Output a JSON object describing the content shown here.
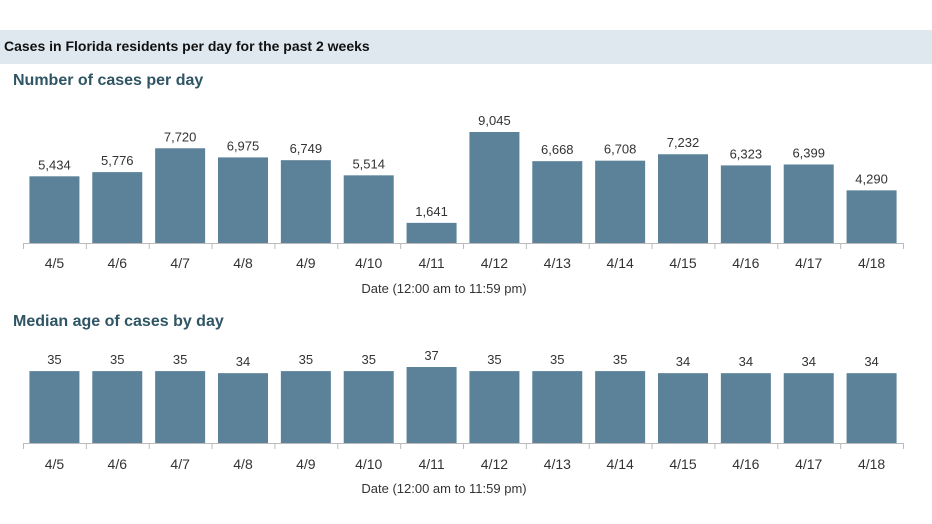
{
  "banner": {
    "title": "Cases in Florida residents per day for the past 2 weeks"
  },
  "colors": {
    "bar": "#5b8299",
    "axis": "#bbbbbb",
    "banner_bg": "#dfe8ef",
    "title": "#2f5564"
  },
  "chart_data": [
    {
      "type": "bar",
      "title": "Number of cases per day",
      "xlabel": "Date (12:00 am to 11:59 pm)",
      "ylabel": "",
      "categories": [
        "4/5",
        "4/6",
        "4/7",
        "4/8",
        "4/9",
        "4/10",
        "4/11",
        "4/12",
        "4/13",
        "4/14",
        "4/15",
        "4/16",
        "4/17",
        "4/18"
      ],
      "values": [
        5434,
        5776,
        7720,
        6975,
        6749,
        5514,
        1641,
        9045,
        6668,
        6708,
        7232,
        6323,
        6399,
        4290
      ],
      "value_labels": [
        "5,434",
        "5,776",
        "7,720",
        "6,975",
        "6,749",
        "5,514",
        "1,641",
        "9,045",
        "6,668",
        "6,708",
        "7,232",
        "6,323",
        "6,399",
        "4,290"
      ],
      "ylim": [
        0,
        9045
      ],
      "grid": false
    },
    {
      "type": "bar",
      "title": "Median age of cases by day",
      "xlabel": "Date (12:00 am to 11:59 pm)",
      "ylabel": "",
      "categories": [
        "4/5",
        "4/6",
        "4/7",
        "4/8",
        "4/9",
        "4/10",
        "4/11",
        "4/12",
        "4/13",
        "4/14",
        "4/15",
        "4/16",
        "4/17",
        "4/18"
      ],
      "values": [
        35,
        35,
        35,
        34,
        35,
        35,
        37,
        35,
        35,
        35,
        34,
        34,
        34,
        34
      ],
      "value_labels": [
        "35",
        "35",
        "35",
        "34",
        "35",
        "35",
        "37",
        "35",
        "35",
        "35",
        "34",
        "34",
        "34",
        "34"
      ],
      "ylim": [
        0,
        37
      ],
      "grid": false
    }
  ]
}
